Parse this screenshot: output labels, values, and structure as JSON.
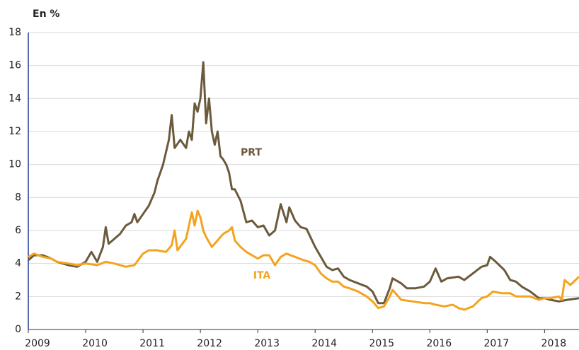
{
  "chart_data": {
    "type": "line",
    "y_label": "En %",
    "xlim": [
      2009,
      2018.6
    ],
    "xticks": [
      2009,
      2010,
      2011,
      2012,
      2013,
      2014,
      2015,
      2016,
      2017,
      2018
    ],
    "ylim": [
      0,
      18
    ],
    "yticks": [
      0,
      2,
      4,
      6,
      8,
      10,
      12,
      14,
      16,
      18
    ],
    "grid": true,
    "series": [
      {
        "name": "PRT",
        "color": "#6b5a3c",
        "x": [
          2009.0,
          2009.1,
          2009.25,
          2009.4,
          2009.5,
          2009.7,
          2009.85,
          2010.0,
          2010.1,
          2010.2,
          2010.3,
          2010.35,
          2010.4,
          2010.5,
          2010.6,
          2010.7,
          2010.8,
          2010.85,
          2010.9,
          2011.0,
          2011.1,
          2011.2,
          2011.25,
          2011.35,
          2011.45,
          2011.5,
          2011.55,
          2011.65,
          2011.75,
          2011.8,
          2011.85,
          2011.9,
          2011.95,
          2012.0,
          2012.05,
          2012.1,
          2012.15,
          2012.2,
          2012.25,
          2012.3,
          2012.35,
          2012.4,
          2012.45,
          2012.5,
          2012.55,
          2012.6,
          2012.7,
          2012.8,
          2012.9,
          2013.0,
          2013.1,
          2013.2,
          2013.3,
          2013.4,
          2013.5,
          2013.55,
          2013.65,
          2013.75,
          2013.85,
          2014.0,
          2014.1,
          2014.2,
          2014.3,
          2014.4,
          2014.5,
          2014.6,
          2014.75,
          2014.9,
          2015.0,
          2015.1,
          2015.2,
          2015.3,
          2015.35,
          2015.5,
          2015.6,
          2015.75,
          2015.9,
          2016.0,
          2016.1,
          2016.2,
          2016.3,
          2016.5,
          2016.6,
          2016.75,
          2016.9,
          2017.0,
          2017.05,
          2017.15,
          2017.3,
          2017.4,
          2017.5,
          2017.6,
          2017.75,
          2017.9,
          2018.0,
          2018.1,
          2018.25,
          2018.4,
          2018.6
        ],
        "values": [
          4.2,
          4.5,
          4.5,
          4.3,
          4.1,
          3.9,
          3.8,
          4.1,
          4.7,
          4.1,
          5.0,
          6.2,
          5.2,
          5.5,
          5.8,
          6.3,
          6.5,
          7.0,
          6.5,
          7.0,
          7.5,
          8.3,
          9.0,
          10.0,
          11.5,
          13.0,
          11.0,
          11.5,
          11.0,
          12.0,
          11.5,
          13.7,
          13.2,
          14.0,
          16.2,
          12.5,
          14.0,
          12.0,
          11.2,
          12.0,
          10.5,
          10.3,
          10.0,
          9.5,
          8.5,
          8.5,
          7.8,
          6.5,
          6.6,
          6.2,
          6.3,
          5.7,
          6.0,
          7.6,
          6.5,
          7.4,
          6.6,
          6.2,
          6.1,
          5.0,
          4.4,
          3.8,
          3.6,
          3.7,
          3.2,
          3.0,
          2.8,
          2.6,
          2.3,
          1.6,
          1.6,
          2.5,
          3.1,
          2.8,
          2.5,
          2.5,
          2.6,
          2.9,
          3.7,
          2.9,
          3.1,
          3.2,
          3.0,
          3.4,
          3.8,
          3.9,
          4.4,
          4.1,
          3.6,
          3.0,
          2.9,
          2.6,
          2.3,
          1.9,
          1.9,
          1.8,
          1.7,
          1.8,
          1.9
        ]
      },
      {
        "name": "ITA",
        "color": "#f5a31e",
        "x": [
          2009.0,
          2009.1,
          2009.25,
          2009.4,
          2009.5,
          2009.7,
          2009.85,
          2010.0,
          2010.2,
          2010.35,
          2010.5,
          2010.7,
          2010.85,
          2011.0,
          2011.1,
          2011.25,
          2011.4,
          2011.5,
          2011.55,
          2011.6,
          2011.75,
          2011.85,
          2011.9,
          2011.95,
          2012.0,
          2012.05,
          2012.1,
          2012.2,
          2012.3,
          2012.4,
          2012.5,
          2012.55,
          2012.6,
          2012.7,
          2012.8,
          2012.9,
          2013.0,
          2013.1,
          2013.2,
          2013.3,
          2013.4,
          2013.5,
          2013.65,
          2013.8,
          2013.9,
          2014.0,
          2014.1,
          2014.2,
          2014.3,
          2014.4,
          2014.5,
          2014.6,
          2014.75,
          2014.9,
          2015.0,
          2015.1,
          2015.2,
          2015.3,
          2015.35,
          2015.5,
          2015.7,
          2015.9,
          2016.0,
          2016.1,
          2016.25,
          2016.4,
          2016.5,
          2016.6,
          2016.75,
          2016.9,
          2017.0,
          2017.1,
          2017.25,
          2017.4,
          2017.5,
          2017.6,
          2017.75,
          2017.9,
          2018.0,
          2018.1,
          2018.25,
          2018.3,
          2018.35,
          2018.45,
          2018.6
        ],
        "values": [
          4.4,
          4.6,
          4.4,
          4.3,
          4.1,
          4.0,
          3.9,
          4.0,
          3.9,
          4.1,
          4.0,
          3.8,
          3.9,
          4.6,
          4.8,
          4.8,
          4.7,
          5.1,
          6.0,
          4.8,
          5.5,
          7.1,
          6.3,
          7.2,
          6.8,
          6.0,
          5.6,
          5.0,
          5.4,
          5.8,
          6.0,
          6.2,
          5.4,
          5.0,
          4.7,
          4.5,
          4.3,
          4.5,
          4.5,
          3.9,
          4.4,
          4.6,
          4.4,
          4.2,
          4.1,
          3.9,
          3.4,
          3.1,
          2.9,
          2.9,
          2.6,
          2.5,
          2.3,
          2.0,
          1.7,
          1.3,
          1.4,
          2.0,
          2.4,
          1.8,
          1.7,
          1.6,
          1.6,
          1.5,
          1.4,
          1.5,
          1.3,
          1.2,
          1.4,
          1.9,
          2.0,
          2.3,
          2.2,
          2.2,
          2.0,
          2.0,
          2.0,
          1.8,
          1.9,
          1.9,
          2.0,
          1.8,
          3.0,
          2.7,
          3.2
        ]
      }
    ]
  }
}
